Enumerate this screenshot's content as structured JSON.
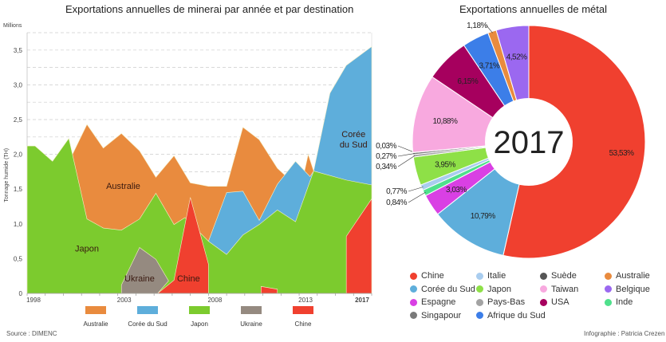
{
  "titles": {
    "area": "Exportations annuelles de minerai par année et par destination",
    "pie": "Exportations annuelles de métal"
  },
  "source": "Source : DIMENC",
  "credit": "Infographie : Patricia Crezen",
  "chart_data": [
    {
      "type": "area",
      "title": "Exportations annuelles de minerai par année et par destination",
      "ylabel": "Tonnage humide (TH)",
      "yunit": "Millions",
      "ylim": [
        0,
        3.75
      ],
      "yticks": [
        "0",
        "0,5",
        "1,0",
        "1,5",
        "2,0",
        "2,5",
        "3,0",
        "3,5"
      ],
      "xlim": [
        1998,
        2017
      ],
      "xticks": [
        {
          "year": 1998,
          "label": "1998"
        },
        {
          "year": 2003,
          "label": "2003"
        },
        {
          "year": 2008,
          "label": "2008"
        },
        {
          "year": 2013,
          "label": "2013"
        },
        {
          "year": 2017,
          "label": "2017"
        }
      ],
      "series": [
        {
          "name": "Australie",
          "color": "#e98b3e",
          "label": "Australie",
          "label_at": [
            2003.3,
            1.5
          ],
          "polygons": [
            [
              [
                2000.5,
                0
              ],
              [
                2000.5,
                2.0
              ],
              [
                2001.3,
                2.43
              ],
              [
                2002.2,
                2.09
              ],
              [
                2003.2,
                2.3
              ],
              [
                2004.2,
                2.05
              ],
              [
                2005.1,
                1.67
              ],
              [
                2006.1,
                1.98
              ],
              [
                2007,
                1.59
              ],
              [
                2008,
                1.54
              ],
              [
                2009,
                1.54
              ],
              [
                2009.9,
                2.39
              ],
              [
                2010.8,
                2.21
              ],
              [
                2011.8,
                1.8
              ],
              [
                2012.3,
                1.68
              ],
              [
                2013.3,
                1.76
              ],
              [
                2013.5,
                2.0
              ],
              [
                2013.8,
                1.76
              ],
              [
                2013.8,
                0
              ]
            ]
          ]
        },
        {
          "name": "Corée du Sud",
          "color": "#5eaedb",
          "label": "Corée\ndu Sud",
          "label_at": [
            2016,
            2.25
          ],
          "polygons": [
            [
              [
                2008,
                0
              ],
              [
                2008,
                0.75
              ],
              [
                2009,
                1.45
              ],
              [
                2009.9,
                1.47
              ],
              [
                2010.8,
                1.05
              ],
              [
                2011.8,
                1.57
              ],
              [
                2012.8,
                1.9
              ],
              [
                2013.6,
                1.68
              ],
              [
                2013.8,
                1.76
              ],
              [
                2014.7,
                2.88
              ],
              [
                2015.6,
                3.28
              ],
              [
                2017,
                3.55
              ],
              [
                2017,
                0
              ]
            ]
          ]
        },
        {
          "name": "Japon",
          "color": "#7ccb2e",
          "label": "Japon",
          "label_at": [
            2001.3,
            0.6
          ],
          "polygons": [
            [
              [
                1998,
                0
              ],
              [
                1998,
                2.12
              ],
              [
                1998.44,
                2.12
              ],
              [
                1999.4,
                1.9
              ],
              [
                2000.3,
                2.23
              ],
              [
                2000.5,
                2.0
              ],
              [
                2001.3,
                1.07
              ],
              [
                2002.2,
                0.94
              ],
              [
                2003.2,
                0.91
              ],
              [
                2004.2,
                1.07
              ],
              [
                2005.1,
                1.44
              ],
              [
                2006.1,
                0.99
              ],
              [
                2006.7,
                1.09
              ],
              [
                2008,
                0.75
              ],
              [
                2009,
                0.56
              ],
              [
                2009.9,
                0.84
              ],
              [
                2010.8,
                0.99
              ],
              [
                2011.8,
                1.2
              ],
              [
                2012.8,
                1.03
              ],
              [
                2013.8,
                1.76
              ],
              [
                2015.6,
                1.63
              ],
              [
                2017,
                1.56
              ],
              [
                2017,
                0
              ]
            ]
          ]
        },
        {
          "name": "Ukraine",
          "color": "#958a80",
          "label": "Ukraine",
          "label_at": [
            2004.2,
            0.17
          ],
          "polygons": [
            [
              [
                2003.2,
                0
              ],
              [
                2003.2,
                0.12
              ],
              [
                2004.2,
                0.66
              ],
              [
                2005.1,
                0.49
              ],
              [
                2005.8,
                0.18
              ],
              [
                2005.2,
                0
              ]
            ]
          ]
        },
        {
          "name": "Chine",
          "color": "#f0402f",
          "label": "Chine",
          "label_at": [
            2006.9,
            0.17
          ],
          "polygons": [
            [
              [
                2005.2,
                0
              ],
              [
                2006.1,
                0.19
              ],
              [
                2007,
                1.38
              ],
              [
                2008,
                0.42
              ],
              [
                2008,
                0
              ]
            ],
            [
              [
                2010.9,
                0
              ],
              [
                2010.9,
                0.1
              ],
              [
                2011.8,
                0.06
              ],
              [
                2011.8,
                0
              ]
            ],
            [
              [
                2015.6,
                0
              ],
              [
                2015.6,
                0.82
              ],
              [
                2017,
                1.36
              ],
              [
                2017,
                0
              ]
            ]
          ]
        }
      ],
      "legend": "bottom"
    },
    {
      "type": "pie",
      "title": "Exportations annuelles de métal",
      "center_label": "2017",
      "slices": [
        {
          "name": "Chine",
          "value": 53.53,
          "label": "53,53%",
          "color": "#f0402f"
        },
        {
          "name": "Corée du Sud",
          "value": 10.79,
          "label": "10,79%",
          "color": "#5eaedb"
        },
        {
          "name": "Espagne",
          "value": 3.03,
          "label": "3,03%",
          "color": "#d940e4"
        },
        {
          "name": "Inde",
          "value": 0.84,
          "label": "0,84%",
          "color": "#4fe08c"
        },
        {
          "name": "Italie",
          "value": 0.77,
          "label": "0,77%",
          "color": "#a9cdef"
        },
        {
          "name": "Japon",
          "value": 3.95,
          "label": "3,95%",
          "color": "#8ee047"
        },
        {
          "name": "Pays-Bas",
          "value": 0.34,
          "label": "0,34%",
          "color": "#a3a3a3"
        },
        {
          "name": "Singapour",
          "value": 0.27,
          "label": "0,27%",
          "color": "#7a7a7a"
        },
        {
          "name": "Suède",
          "value": 0.03,
          "label": "0,03%",
          "color": "#555555"
        },
        {
          "name": "Taiwan",
          "value": 10.88,
          "label": "10,88%",
          "color": "#f8a9df"
        },
        {
          "name": "USA",
          "value": 6.15,
          "label": "6,15%",
          "color": "#a6005e"
        },
        {
          "name": "Afrique du Sud",
          "value": 3.71,
          "label": "3,71%",
          "color": "#3c7ee8"
        },
        {
          "name": "Australie",
          "value": 1.18,
          "label": "1,18%",
          "color": "#e98b3e"
        },
        {
          "name": "Belgique",
          "value": 4.52,
          "label": "4,52%",
          "color": "#9b68f0"
        }
      ],
      "legend_order": [
        "Chine",
        "Italie",
        "Suède",
        "Australie",
        "Corée du Sud",
        "Japon",
        "Taiwan",
        "Belgique",
        "Espagne",
        "Pays-Bas",
        "USA",
        "Inde",
        "Singapour",
        "Afrique du Sud"
      ],
      "legend": "bottom"
    }
  ]
}
